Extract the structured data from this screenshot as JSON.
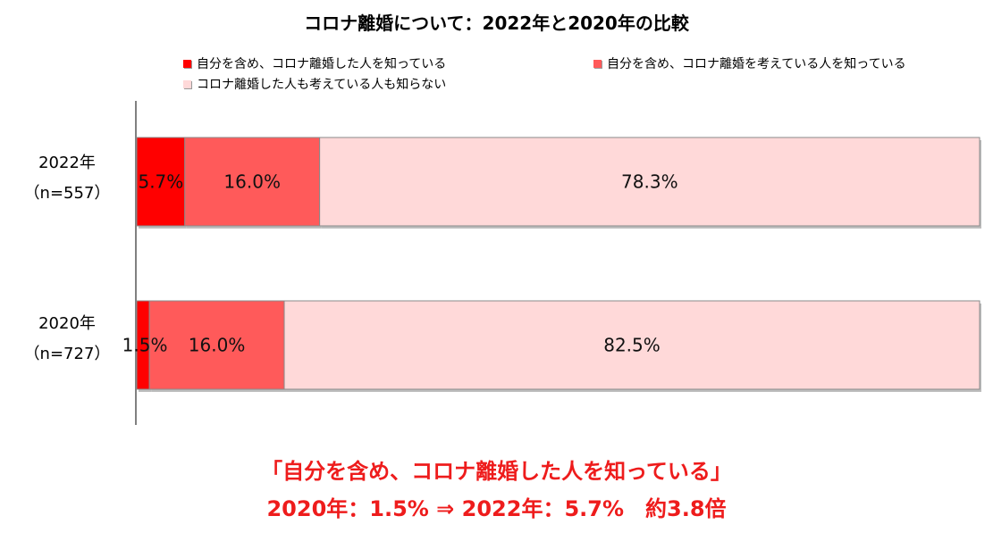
{
  "chart_data": {
    "type": "bar",
    "orientation": "horizontal",
    "stacked": true,
    "title": "コロナ離婚について：2022年と2020年の比較",
    "categories": [
      {
        "year": "2022年",
        "n": "（n=557）"
      },
      {
        "year": "2020年",
        "n": "（n=727）"
      }
    ],
    "series": [
      {
        "name": "自分を含め、コロナ離婚した人を知っている",
        "color": "#ff0000",
        "values": [
          5.7,
          1.5
        ],
        "labels": [
          "5.7%",
          "1.5%"
        ]
      },
      {
        "name": "自分を含め、コロナ離婚を考えている人を知っている",
        "color": "#ff5a5a",
        "values": [
          16.0,
          16.0
        ],
        "labels": [
          "16.0%",
          "16.0%"
        ]
      },
      {
        "name": "コロナ離婚した人も考えている人も知らない",
        "color": "#ffd9d9",
        "values": [
          78.3,
          82.5
        ],
        "labels": [
          "78.3%",
          "82.5%"
        ]
      }
    ],
    "xlim": [
      0,
      100
    ],
    "grid": false,
    "legend_position": "top"
  },
  "note": {
    "line1": "「自分を含め、コロナ離婚した人を知っている」",
    "line2": "2020年：1.5% ⇒ 2022年：5.7%　約3.8倍"
  }
}
